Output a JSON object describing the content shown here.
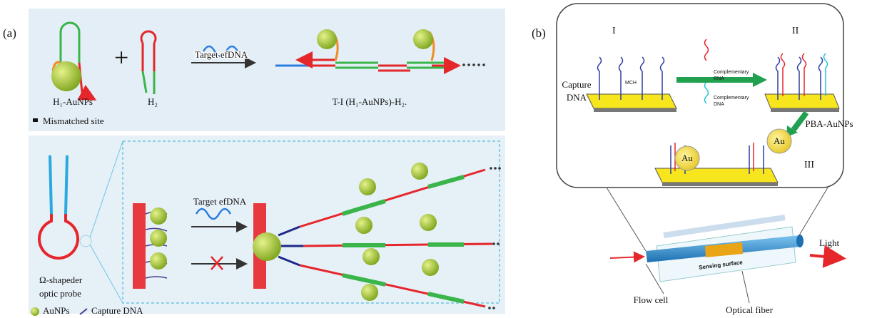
{
  "panel_a": {
    "label": "(a)",
    "top": {
      "h1_label": "H₁-AuNPs",
      "h2_label": "H₂",
      "arrow_label": "Target efDNA",
      "product_label": "T-I (H₁-AuNPs)-H₂.",
      "legend_mismatch": "Mismatched site"
    },
    "bottom": {
      "arrow_label": "Target efDNA",
      "probe_label": [
        "Ω-shapeder",
        "optic probe"
      ],
      "legend_aunps": "AuNPs",
      "legend_capture": "Capture DNA"
    }
  },
  "panel_b": {
    "label": "(b)",
    "step_1": "I",
    "step_2": "II",
    "step_3": "III",
    "capture_dna": [
      "Capture",
      "DNA"
    ],
    "mch": "MCH",
    "complementary_rna": [
      "Complementary",
      "RNA"
    ],
    "complementary_dna": [
      "Complementary",
      "DNA"
    ],
    "pba_aunps": "PBA-AuNPs",
    "au_labels": [
      "Au",
      "Au"
    ],
    "sensing_surface": "Sensing surface",
    "light": "Light",
    "flow_cell": "Flow cell",
    "optical_fiber": "Optical fiber"
  }
}
